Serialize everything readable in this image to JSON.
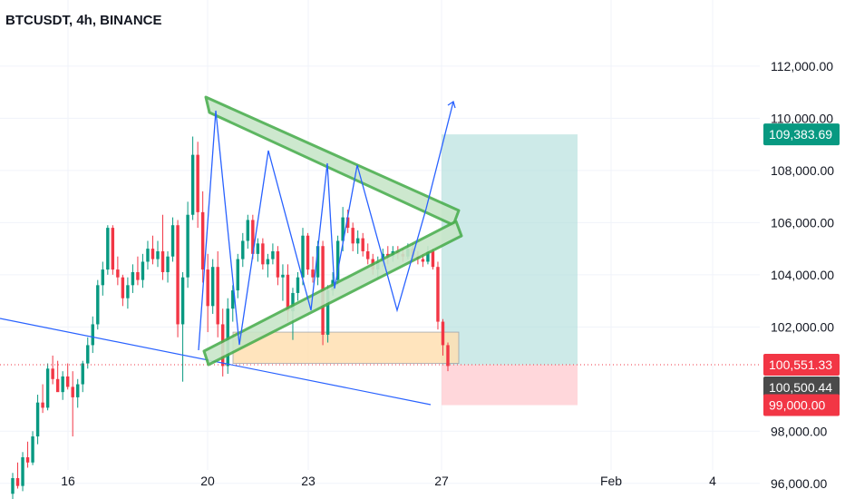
{
  "title": "BTCUSDT, 4h, BINANCE",
  "colors": {
    "up": "#089981",
    "down": "#f23645",
    "trend_line": "#2962ff",
    "triangle": "#4caf50",
    "triangle_fill": "#c8e6c9",
    "zone_fill": "#ffe0b2",
    "target_fill": "#b2dfdb",
    "stop_fill": "#ffcdd2",
    "target_tag": "#089981",
    "price_tag": "#f23645",
    "close_tag": "#4a4a4a",
    "stop_tag": "#f23645",
    "grid": "#f0f3fa"
  },
  "chart_data": {
    "type": "candlestick",
    "title": "BTCUSDT, 4h, BINANCE",
    "y_ticks": [
      "112,000.00",
      "110,000.00",
      "108,000.00",
      "106,000.00",
      "104,000.00",
      "102,000.00",
      "98,000.00",
      "96,000.00"
    ],
    "x_ticks": [
      "16",
      "20",
      "23",
      "27",
      "Feb",
      "4"
    ],
    "ylim": [
      95400,
      113300
    ],
    "grid": true,
    "price_tags": {
      "target": "109,383.69",
      "current": "100,551.33",
      "close": "100,500.44",
      "stop": "99,000.00"
    },
    "position": {
      "entry": 100551,
      "target": 109383.69,
      "stop": 99000.0
    },
    "pattern": "symmetrical triangle",
    "candles_note": "OHLC approximated from chart",
    "candles": [
      [
        95600,
        96400,
        95300,
        96200
      ],
      [
        96200,
        96800,
        95800,
        95900
      ],
      [
        95900,
        97200,
        95700,
        97000
      ],
      [
        97000,
        97600,
        96600,
        96800
      ],
      [
        96800,
        98000,
        96700,
        97800
      ],
      [
        97800,
        99400,
        97500,
        99100
      ],
      [
        99100,
        99800,
        98700,
        98900
      ],
      [
        98900,
        100600,
        98800,
        100400
      ],
      [
        100400,
        100900,
        99800,
        100000
      ],
      [
        100000,
        100700,
        99600,
        99500
      ],
      [
        99500,
        100300,
        99200,
        100100
      ],
      [
        100100,
        100600,
        99600,
        99700
      ],
      [
        99700,
        100300,
        97800,
        99300
      ],
      [
        99300,
        100000,
        98900,
        99800
      ],
      [
        99800,
        100700,
        99500,
        100600
      ],
      [
        100600,
        101600,
        100400,
        101300
      ],
      [
        101300,
        102400,
        101000,
        102100
      ],
      [
        102100,
        103800,
        101900,
        103600
      ],
      [
        103600,
        104500,
        103200,
        104200
      ],
      [
        104200,
        105900,
        104000,
        105800
      ],
      [
        105800,
        105900,
        104000,
        104200
      ],
      [
        104200,
        104700,
        103600,
        103900
      ],
      [
        103900,
        104000,
        102800,
        103100
      ],
      [
        103100,
        103900,
        102700,
        103600
      ],
      [
        103600,
        104400,
        103300,
        104100
      ],
      [
        104100,
        104700,
        103600,
        103800
      ],
      [
        103800,
        104800,
        103500,
        104500
      ],
      [
        104500,
        105300,
        104200,
        105000
      ],
      [
        105000,
        105500,
        104400,
        104600
      ],
      [
        104600,
        105300,
        104300,
        104900
      ],
      [
        104900,
        106300,
        103800,
        104100
      ],
      [
        104100,
        104900,
        103700,
        104700
      ],
      [
        104700,
        106200,
        104500,
        105900
      ],
      [
        105900,
        106100,
        101600,
        102100
      ],
      [
        102100,
        104100,
        99900,
        103900
      ],
      [
        103900,
        106800,
        103500,
        106300
      ],
      [
        106300,
        109300,
        106100,
        108600
      ],
      [
        108600,
        109100,
        105800,
        106400
      ],
      [
        106400,
        107200,
        103700,
        104200
      ],
      [
        104200,
        104800,
        101800,
        102800
      ],
      [
        102800,
        104600,
        102500,
        104300
      ],
      [
        104300,
        104900,
        101600,
        102100
      ],
      [
        102100,
        102700,
        100100,
        100500
      ],
      [
        100500,
        103100,
        100200,
        102700
      ],
      [
        102700,
        103600,
        102200,
        103400
      ],
      [
        103400,
        104800,
        103100,
        104600
      ],
      [
        104600,
        105600,
        104300,
        105300
      ],
      [
        105300,
        106300,
        105000,
        106100
      ],
      [
        106100,
        106300,
        104600,
        104800
      ],
      [
        104800,
        105400,
        104500,
        105200
      ],
      [
        105200,
        105400,
        104200,
        104400
      ],
      [
        104400,
        104800,
        103900,
        104600
      ],
      [
        104600,
        105200,
        104400,
        104900
      ],
      [
        104900,
        105100,
        103600,
        103900
      ],
      [
        103900,
        104400,
        103000,
        104000
      ],
      [
        104000,
        104400,
        102200,
        102600
      ],
      [
        102600,
        103500,
        101500,
        103300
      ],
      [
        103300,
        104100,
        103000,
        103900
      ],
      [
        103900,
        105800,
        103600,
        105500
      ],
      [
        105500,
        105600,
        104000,
        104200
      ],
      [
        104200,
        104700,
        103700,
        103900
      ],
      [
        103900,
        105300,
        103600,
        105100
      ],
      [
        105100,
        105300,
        101300,
        101700
      ],
      [
        101700,
        103600,
        101400,
        103400
      ],
      [
        103400,
        104100,
        103200,
        103800
      ],
      [
        103800,
        105500,
        103600,
        105300
      ],
      [
        105300,
        106600,
        104900,
        106200
      ],
      [
        106200,
        106500,
        105600,
        105800
      ],
      [
        105800,
        106000,
        104900,
        105200
      ],
      [
        105200,
        105700,
        104800,
        105400
      ],
      [
        105400,
        105600,
        104700,
        104900
      ],
      [
        104900,
        105200,
        104400,
        104600
      ],
      [
        104600,
        104800,
        104000,
        104200
      ],
      [
        104200,
        104700,
        103900,
        104500
      ],
      [
        104500,
        105000,
        104300,
        104800
      ],
      [
        104800,
        105100,
        104400,
        104700
      ],
      [
        104700,
        105100,
        104500,
        104900
      ],
      [
        104900,
        105100,
        104600,
        104800
      ],
      [
        104800,
        105000,
        104500,
        104700
      ],
      [
        104700,
        105200,
        104600,
        105000
      ],
      [
        105000,
        105200,
        104600,
        104700
      ],
      [
        104700,
        104900,
        104400,
        104600
      ],
      [
        104600,
        104800,
        104300,
        104500
      ],
      [
        104500,
        105100,
        104400,
        104900
      ],
      [
        104900,
        105000,
        104200,
        104300
      ],
      [
        104300,
        104500,
        101900,
        102200
      ],
      [
        102200,
        102300,
        100900,
        101300
      ],
      [
        101300,
        101400,
        100300,
        100500
      ]
    ]
  }
}
